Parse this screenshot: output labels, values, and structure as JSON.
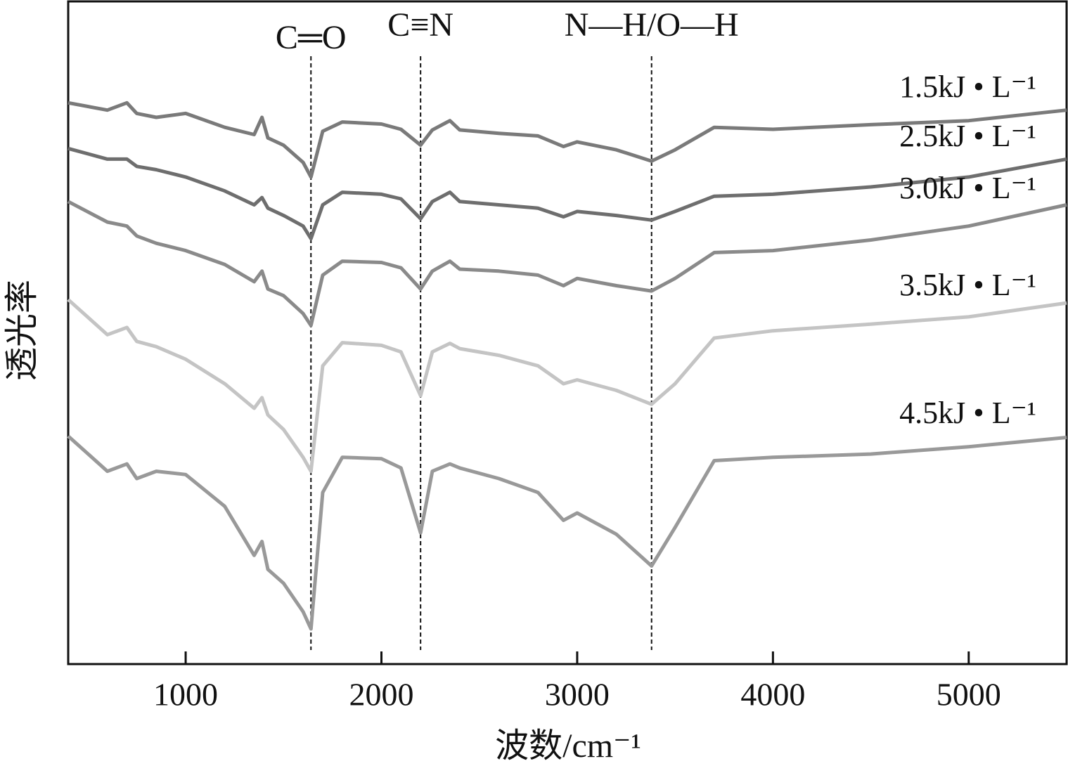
{
  "chart_data": {
    "type": "line",
    "x_label": "波数/cm⁻¹",
    "y_label": "透光率",
    "xlim": [
      400,
      5500
    ],
    "ylim": [
      0,
      100
    ],
    "xticks": [
      1000,
      2000,
      3000,
      4000,
      5000
    ],
    "annotations": [
      {
        "text": "C═O",
        "x": 1640
      },
      {
        "text": "C≡N",
        "x": 2200
      },
      {
        "text": "N—H/O—H",
        "x": 3380
      }
    ],
    "x": [
      400,
      600,
      700,
      750,
      850,
      1000,
      1200,
      1350,
      1390,
      1420,
      1500,
      1600,
      1640,
      1700,
      1800,
      2000,
      2100,
      2200,
      2260,
      2350,
      2400,
      2600,
      2800,
      2930,
      3000,
      3200,
      3380,
      3500,
      3700,
      4000,
      4500,
      5000,
      5500
    ],
    "series": [
      {
        "name": "1.5kJ • L⁻¹",
        "color": "#7a7a7a",
        "values": [
          84.7,
          83.6,
          84.7,
          83.1,
          82.5,
          83.1,
          81.0,
          79.9,
          82.5,
          79.4,
          78.3,
          75.7,
          73.5,
          80.4,
          81.8,
          81.5,
          80.7,
          78.3,
          80.6,
          82.0,
          80.6,
          80.1,
          79.7,
          78.1,
          78.8,
          77.6,
          75.9,
          77.6,
          81.0,
          80.7,
          81.4,
          82.0,
          83.6
        ]
      },
      {
        "name": "2.5kJ • L⁻¹",
        "color": "#6e6e6e",
        "values": [
          77.8,
          76.2,
          76.2,
          75.1,
          74.6,
          73.5,
          71.4,
          69.3,
          70.4,
          68.8,
          67.7,
          66.1,
          64.2,
          69.3,
          71.2,
          70.9,
          70.2,
          67.2,
          69.8,
          71.2,
          69.8,
          69.3,
          68.8,
          67.5,
          68.3,
          67.7,
          67.0,
          68.3,
          70.6,
          70.9,
          72.0,
          73.5,
          76.2
        ]
      },
      {
        "name": "3.0kJ • L⁻¹",
        "color": "#8a8a8a",
        "values": [
          69.8,
          66.7,
          66.1,
          64.6,
          63.5,
          62.4,
          60.3,
          57.7,
          59.3,
          56.6,
          55.6,
          52.9,
          51.1,
          58.7,
          60.8,
          60.6,
          59.8,
          56.6,
          59.3,
          60.8,
          59.6,
          59.3,
          58.7,
          57.1,
          58.2,
          57.1,
          56.3,
          58.2,
          62.1,
          62.4,
          64.0,
          66.1,
          69.3
        ]
      },
      {
        "name": "3.5kJ • L⁻¹",
        "color": "#c4c4c4",
        "values": [
          55.0,
          49.7,
          50.8,
          48.7,
          47.9,
          46.0,
          42.3,
          38.6,
          40.2,
          37.6,
          35.4,
          31.2,
          29.1,
          45.0,
          48.5,
          48.1,
          47.1,
          40.5,
          47.1,
          48.4,
          47.6,
          46.6,
          45.0,
          42.3,
          42.9,
          41.3,
          39.2,
          42.3,
          49.2,
          50.3,
          51.3,
          52.4,
          54.5
        ]
      },
      {
        "name": "4.5kJ • L⁻¹",
        "color": "#999999",
        "values": [
          34.4,
          29.1,
          30.2,
          28.0,
          29.1,
          28.6,
          23.8,
          16.4,
          18.5,
          14.3,
          12.2,
          7.9,
          5.3,
          25.9,
          31.2,
          31.0,
          29.6,
          19.8,
          29.1,
          30.2,
          29.6,
          28.0,
          25.9,
          21.7,
          22.8,
          19.6,
          14.8,
          20.6,
          30.7,
          31.2,
          31.7,
          32.8,
          34.2
        ]
      }
    ]
  }
}
